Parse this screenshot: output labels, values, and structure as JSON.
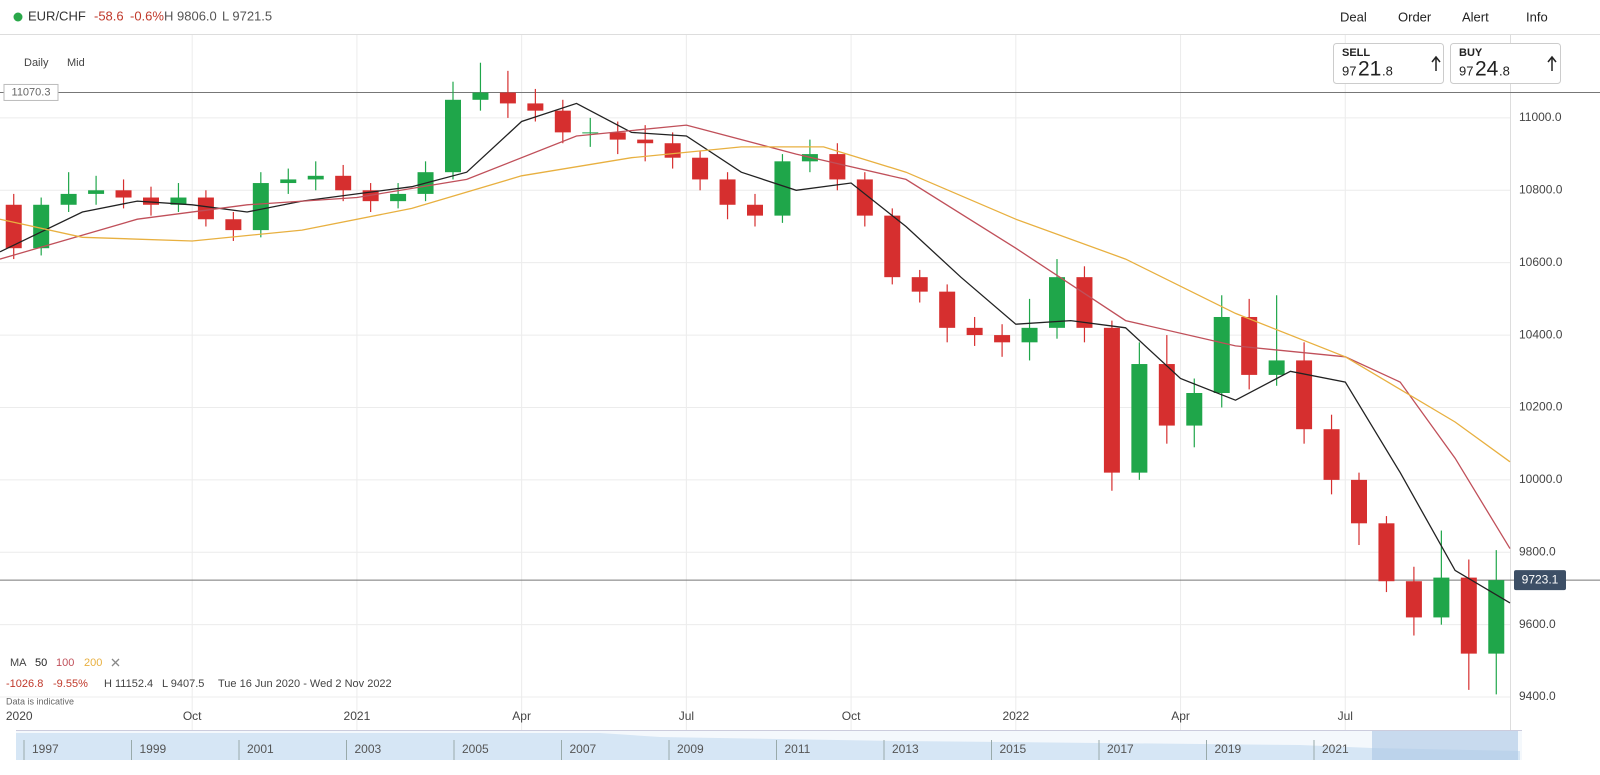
{
  "header": {
    "symbol": "EUR/CHF",
    "change": "-58.6",
    "change_pct": "-0.6%",
    "high": "H 9806.0",
    "low": "L 9721.5",
    "menu": [
      "Deal",
      "Order",
      "Alert",
      "Info"
    ]
  },
  "toolbar": {
    "interval": "Daily",
    "price_type": "Mid"
  },
  "sell": {
    "label": "SELL",
    "price_parts": [
      "97",
      "21",
      ".8"
    ]
  },
  "buy": {
    "label": "BUY",
    "price_parts": [
      "97",
      "24",
      ".8"
    ]
  },
  "ma_legend": {
    "label": "MA",
    "periods": [
      "50",
      "100",
      "200"
    ]
  },
  "stats": {
    "change": "-1026.8",
    "change_pct": "-9.55%",
    "high": "H 11152.4",
    "low": "L 9407.5",
    "range": "Tue 16 Jun 2020 - Wed 2 Nov 2022",
    "note": "Data is indicative"
  },
  "navigator": {
    "years": [
      "1997",
      "1999",
      "2001",
      "2003",
      "2005",
      "2007",
      "2009",
      "2011",
      "2013",
      "2015",
      "2017",
      "2019",
      "2021"
    ]
  },
  "chart_data": {
    "type": "candlestick",
    "xlim": [
      5.5,
      33
    ],
    "ylim": [
      9309,
      11229
    ],
    "xticks": [
      {
        "value": 5.85,
        "label": "2020"
      },
      {
        "value": 9,
        "label": "Oct"
      },
      {
        "value": 12,
        "label": "2021"
      },
      {
        "value": 15,
        "label": "Apr"
      },
      {
        "value": 18,
        "label": "Jul"
      },
      {
        "value": 21,
        "label": "Oct"
      },
      {
        "value": 24,
        "label": "2022"
      },
      {
        "value": 27,
        "label": "Apr"
      },
      {
        "value": 30,
        "label": "Jul"
      }
    ],
    "yticks": [
      {
        "value": 9400,
        "label": "9400.0"
      },
      {
        "value": 9600,
        "label": "9600.0"
      },
      {
        "value": 9800,
        "label": "9800.0"
      },
      {
        "value": 10000,
        "label": "10000.0"
      },
      {
        "value": 10200,
        "label": "10200.0"
      },
      {
        "value": 10400,
        "label": "10400.0"
      },
      {
        "value": 10600,
        "label": "10600.0"
      },
      {
        "value": 10800,
        "label": "10800.0"
      },
      {
        "value": 11000,
        "label": "11000.0"
      }
    ],
    "grid": true,
    "up_color": "#1fa64a",
    "down_color": "#d62f2f",
    "x": [
      5.75,
      6.25,
      6.75,
      7.25,
      7.75,
      8.25,
      8.75,
      9.25,
      9.75,
      10.25,
      10.75,
      11.25,
      11.75,
      12.25,
      12.75,
      13.25,
      13.75,
      14.25,
      14.75,
      15.25,
      15.75,
      16.25,
      16.75,
      17.25,
      17.75,
      18.25,
      18.75,
      19.25,
      19.75,
      20.25,
      20.75,
      21.25,
      21.75,
      22.25,
      22.75,
      23.25,
      23.75,
      24.25,
      24.75,
      25.25,
      25.75,
      26.25,
      26.75,
      27.25,
      27.75,
      28.25,
      28.75,
      29.25,
      29.75,
      30.25,
      30.75,
      31.25,
      31.75,
      32.25,
      32.75
    ],
    "open": [
      10760,
      10640,
      10760,
      10790,
      10800,
      10780,
      10760,
      10780,
      10720,
      10690,
      10820,
      10830,
      10840,
      10800,
      10770,
      10790,
      10850,
      11050,
      11070,
      11040,
      11020,
      10960,
      10960,
      10940,
      10930,
      10890,
      10830,
      10760,
      10730,
      10880,
      10900,
      10830,
      10730,
      10560,
      10520,
      10420,
      10400,
      10380,
      10420,
      10560,
      10420,
      10020,
      10320,
      10150,
      10240,
      10450,
      10290,
      10330,
      10140,
      10000,
      9880,
      9720,
      9620,
      9730,
      9520
    ],
    "high": [
      10790,
      10780,
      10850,
      10840,
      10830,
      10810,
      10820,
      10800,
      10740,
      10850,
      10860,
      10880,
      10870,
      10820,
      10820,
      10880,
      11100,
      11152.4,
      11130,
      11080,
      11050,
      11000,
      10990,
      10980,
      10960,
      10910,
      10850,
      10790,
      10900,
      10940,
      10930,
      10850,
      10750,
      10580,
      10540,
      10450,
      10430,
      10500,
      10610,
      10590,
      10440,
      10380,
      10400,
      10280,
      10510,
      10500,
      10510,
      10380,
      10180,
      10020,
      9900,
      9760,
      9860,
      9780,
      9806
    ],
    "low": [
      10610,
      10620,
      10740,
      10760,
      10750,
      10730,
      10740,
      10700,
      10660,
      10670,
      10790,
      10800,
      10770,
      10740,
      10750,
      10770,
      10830,
      11020,
      11000,
      10990,
      10930,
      10920,
      10900,
      10880,
      10860,
      10800,
      10720,
      10700,
      10710,
      10850,
      10800,
      10700,
      10540,
      10490,
      10380,
      10370,
      10340,
      10330,
      10390,
      10380,
      9970,
      10000,
      10100,
      10090,
      10200,
      10250,
      10260,
      10100,
      9960,
      9820,
      9690,
      9570,
      9600,
      9420,
      9407.5
    ],
    "close": [
      10640,
      10760,
      10790,
      10800,
      10780,
      10760,
      10780,
      10720,
      10690,
      10820,
      10830,
      10840,
      10800,
      10770,
      10790,
      10850,
      11050,
      11070,
      11040,
      11020,
      10960,
      10960,
      10940,
      10930,
      10890,
      10830,
      10760,
      10730,
      10880,
      10900,
      10830,
      10730,
      10560,
      10520,
      10420,
      10400,
      10380,
      10420,
      10560,
      10420,
      10020,
      10320,
      10150,
      10240,
      10450,
      10290,
      10330,
      10140,
      10000,
      9880,
      9720,
      9620,
      9730,
      9520,
      9723
    ],
    "lines": [
      {
        "name": "50",
        "color": "#222222",
        "x": [
          5.5,
          7,
          8,
          9,
          10,
          11,
          12,
          13,
          14,
          15,
          16,
          17,
          18,
          19,
          20,
          21,
          22,
          23,
          24,
          25,
          26,
          27,
          28,
          29,
          30,
          31,
          32,
          33
        ],
        "values": [
          10630,
          10740,
          10770,
          10760,
          10740,
          10770,
          10790,
          10810,
          10850,
          10990,
          11040,
          10960,
          10950,
          10850,
          10800,
          10820,
          10700,
          10560,
          10430,
          10440,
          10420,
          10280,
          10220,
          10300,
          10270,
          10020,
          9750,
          9660
        ]
      },
      {
        "name": "100",
        "color": "#c0505a",
        "x": [
          5.5,
          8,
          10,
          12,
          14,
          16,
          18,
          20,
          22,
          24,
          26,
          28,
          30,
          31,
          32,
          33
        ],
        "values": [
          10610,
          10720,
          10760,
          10780,
          10830,
          10950,
          10980,
          10900,
          10830,
          10640,
          10440,
          10370,
          10340,
          10270,
          10060,
          9810
        ]
      },
      {
        "name": "200",
        "color": "#e8b040",
        "x": [
          5.5,
          7,
          9,
          11,
          13,
          15,
          17,
          19,
          20.5,
          22,
          24,
          26,
          28,
          30,
          32,
          33
        ],
        "values": [
          10720,
          10670,
          10660,
          10690,
          10750,
          10840,
          10890,
          10920,
          10920,
          10850,
          10720,
          10610,
          10460,
          10340,
          10160,
          10050
        ]
      }
    ],
    "reference_lines": [
      {
        "value": 11070.3,
        "label": "11070.3"
      },
      {
        "value": 9723.1,
        "label": "9723.1"
      }
    ]
  }
}
